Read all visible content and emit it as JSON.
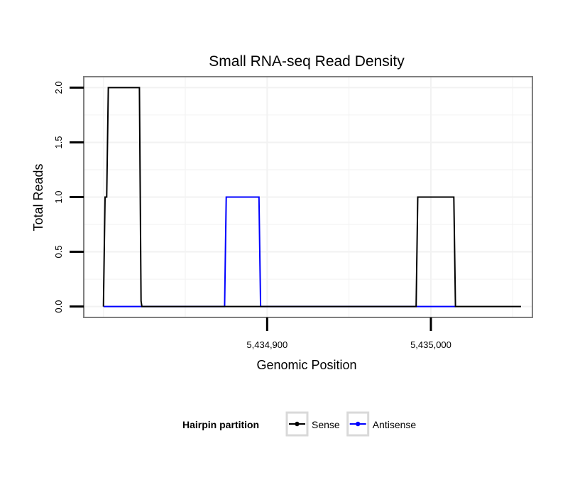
{
  "chart_data": {
    "type": "line",
    "title": "Small RNA-seq Read Density",
    "xlabel": "Genomic Position",
    "ylabel": "Total Reads",
    "xlim": [
      5434788,
      5435062
    ],
    "ylim": [
      -0.1,
      2.1
    ],
    "xticks": [
      {
        "value": 5434900,
        "label": "5,434,900"
      },
      {
        "value": 5435000,
        "label": "5,435,000"
      }
    ],
    "yticks": [
      {
        "value": 0.0,
        "label": "0.0"
      },
      {
        "value": 0.5,
        "label": "0.5"
      },
      {
        "value": 1.0,
        "label": "1.0"
      },
      {
        "value": 1.5,
        "label": "1.5"
      },
      {
        "value": 2.0,
        "label": "2.0"
      }
    ],
    "series": [
      {
        "name": "Sense",
        "color": "#000000",
        "x": [
          5434800,
          5434801,
          5434802,
          5434803,
          5434822,
          5434823,
          5434823.5,
          5434876,
          5434898,
          5434990,
          5434991,
          5434992,
          5435014,
          5435015,
          5435055
        ],
        "y": [
          0,
          1,
          1,
          2,
          2,
          0.05,
          0,
          0,
          0,
          0,
          0,
          1,
          1,
          0,
          0
        ]
      },
      {
        "name": "Antisense",
        "color": "#0000ff",
        "x": [
          5434800,
          5434874,
          5434875,
          5434895,
          5434896,
          5434990,
          5435015
        ],
        "y": [
          0,
          0,
          1,
          1,
          0,
          0,
          0
        ]
      }
    ],
    "legend": {
      "title": "Hairpin partition",
      "position": "bottom",
      "entries": [
        {
          "label": "Sense",
          "color": "#000000"
        },
        {
          "label": "Antisense",
          "color": "#0000ff"
        }
      ]
    },
    "grid": true
  }
}
